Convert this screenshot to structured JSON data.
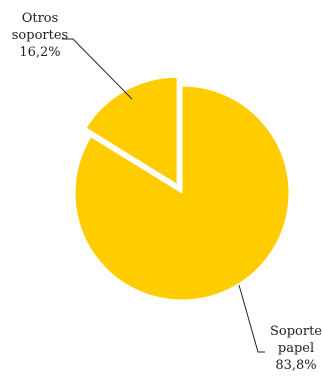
{
  "chart_data": {
    "type": "pie",
    "title": "",
    "slices": [
      {
        "label_lines": [
          "Soporte",
          "papel"
        ],
        "value": 83.8,
        "value_label": "83,8%",
        "color": "#FFCC00",
        "exploded": false
      },
      {
        "label_lines": [
          "Otros",
          "soportes"
        ],
        "value": 16.2,
        "value_label": "16,2%",
        "color": "#FFCC00",
        "exploded": true
      }
    ],
    "start_angle_deg": 0,
    "direction": "clockwise",
    "legend": "none"
  }
}
